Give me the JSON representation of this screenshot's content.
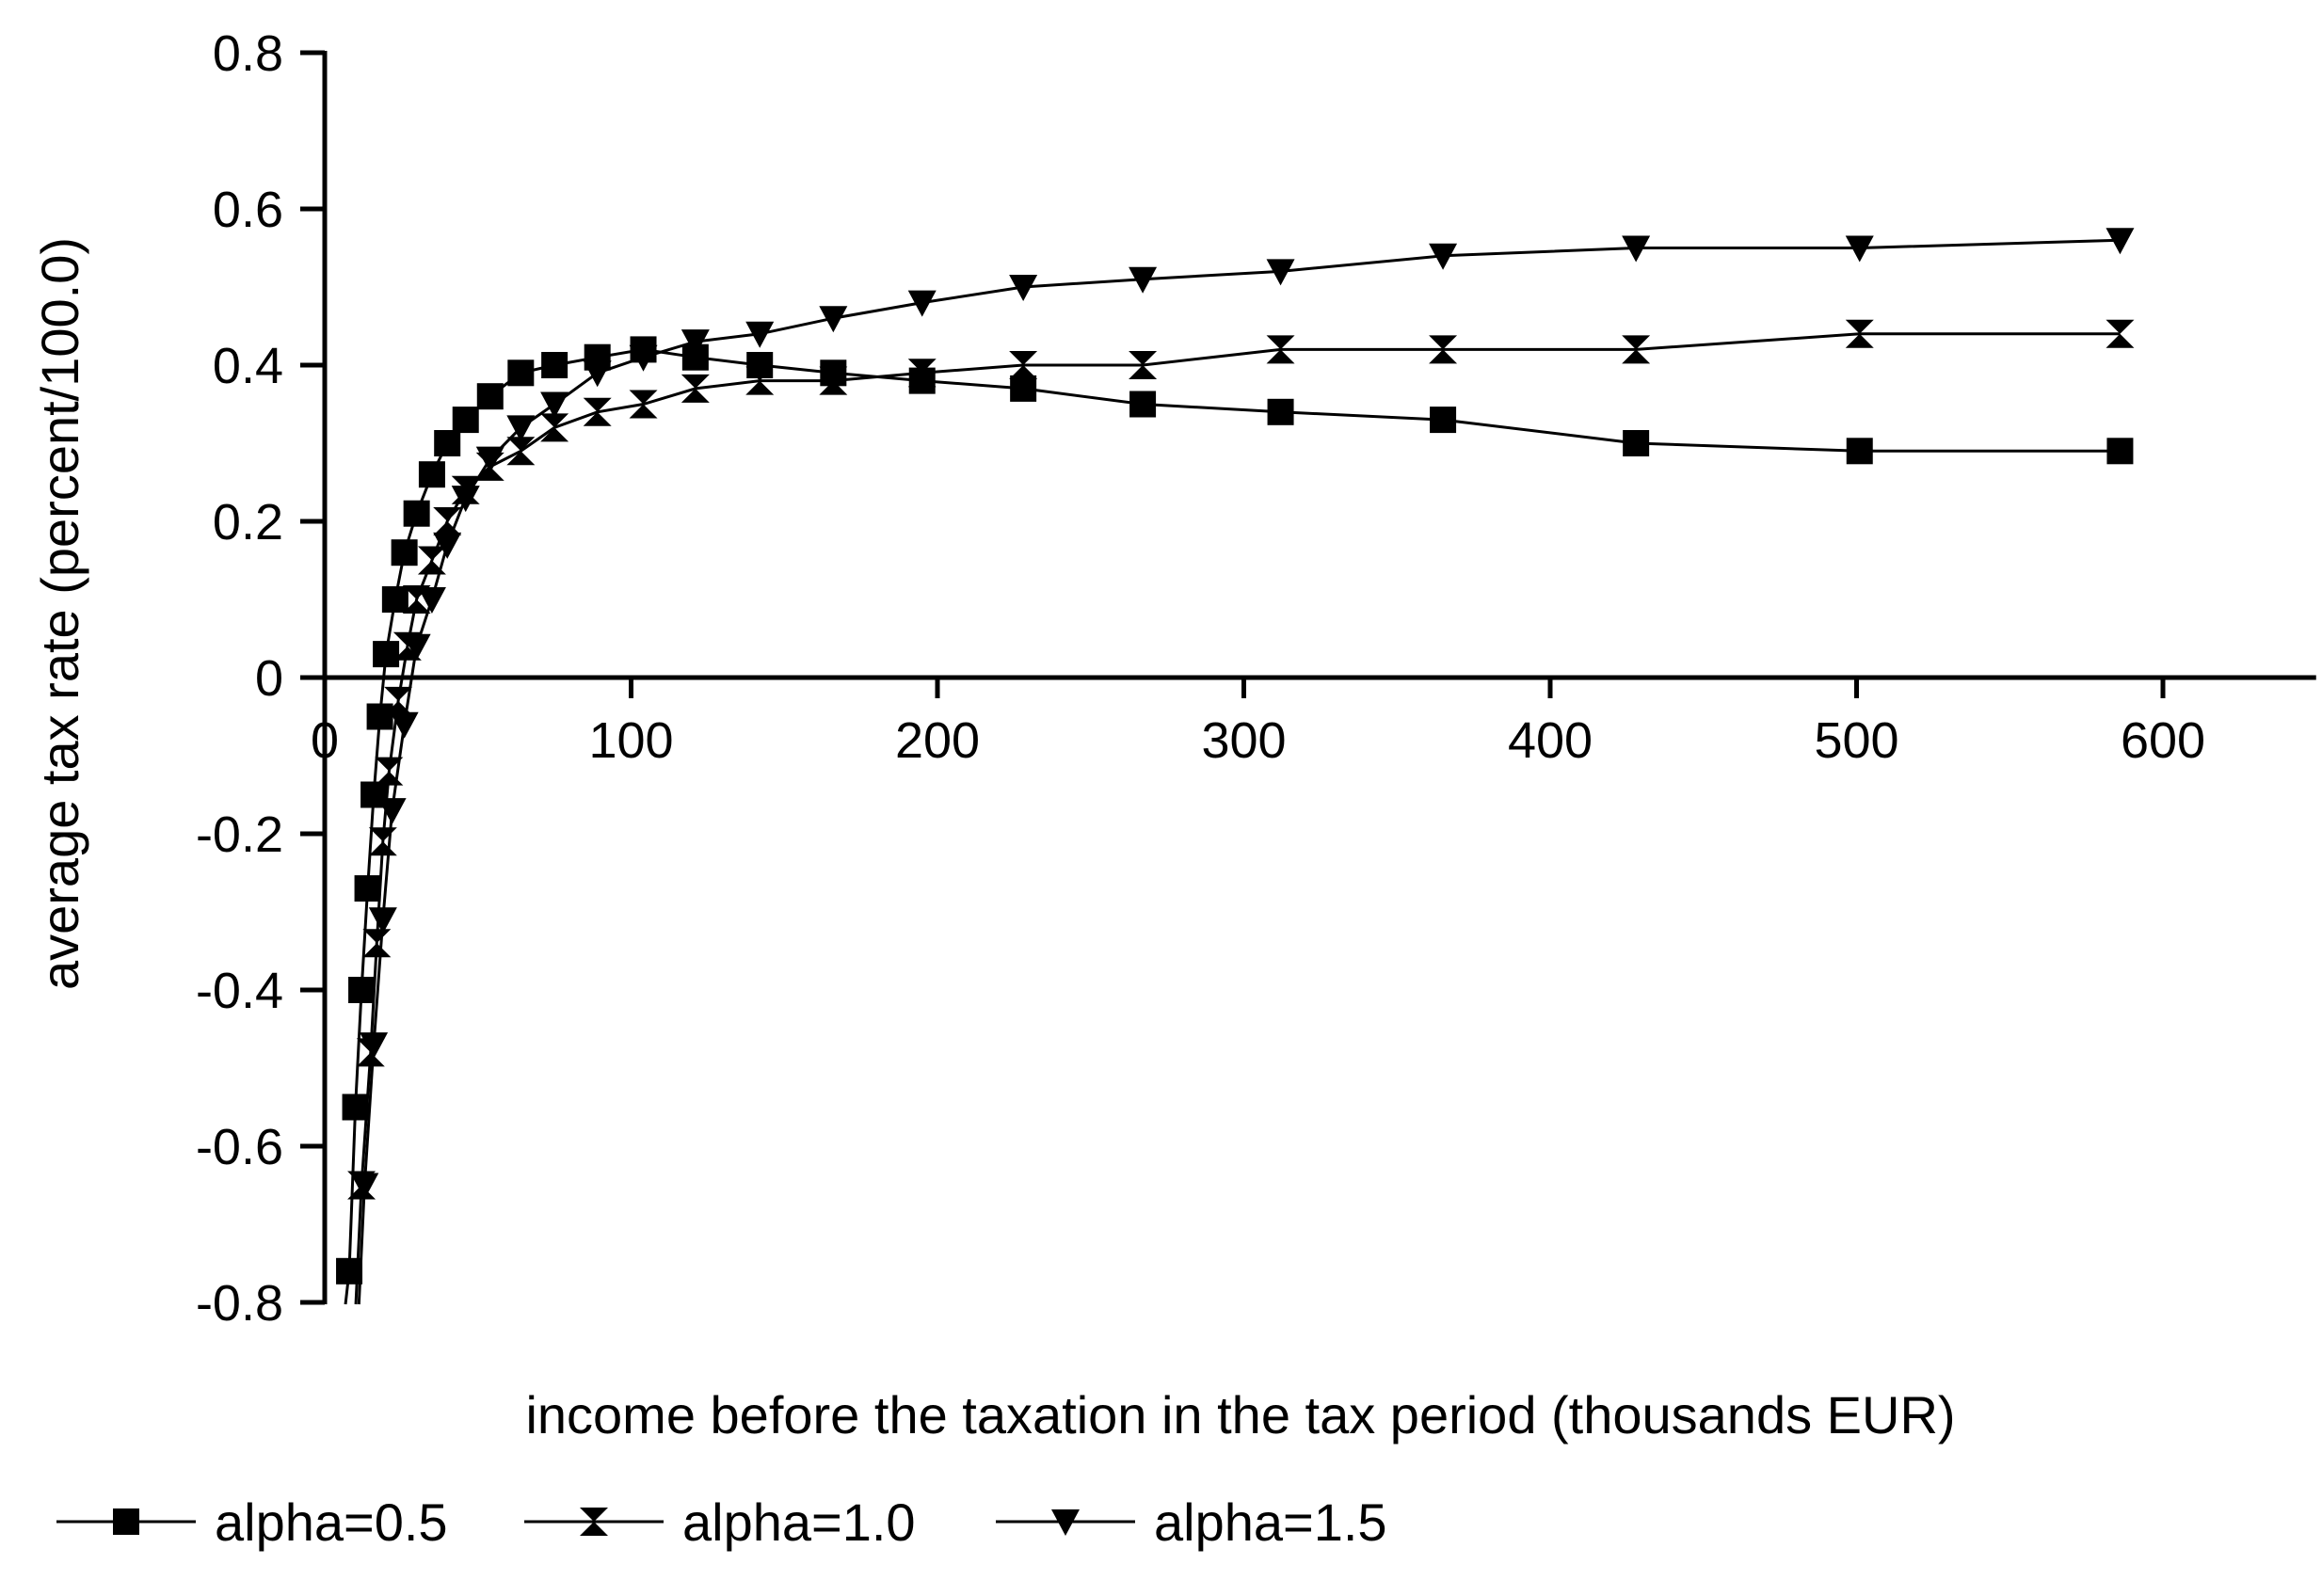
{
  "chart_data": {
    "type": "line",
    "title": "",
    "xlabel": "income before the taxation in the tax period (thousands EUR)",
    "ylabel": "average tax rate (percent/100.0)",
    "xlim": [
      0,
      650
    ],
    "ylim": [
      -0.8,
      0.8
    ],
    "x_ticks": [
      0,
      100,
      200,
      300,
      400,
      500,
      600
    ],
    "x_tick_labels": [
      "0",
      "100",
      "200",
      "300",
      "400",
      "500",
      "600"
    ],
    "y_ticks": [
      0.8,
      0.6,
      0.4,
      0.2,
      0,
      -0.2,
      -0.4,
      -0.6,
      -0.8
    ],
    "y_tick_labels": [
      "0.8",
      "0.6",
      "0.4",
      "0.2",
      "0",
      "-0.2",
      "-0.4",
      "-0.6",
      "-0.8"
    ],
    "grid": false,
    "legend_position": "bottom",
    "series": [
      {
        "name": "alpha=0.5",
        "marker": "square",
        "x": [
          8,
          10,
          12,
          14,
          16,
          18,
          20,
          23,
          26,
          30,
          35,
          40,
          46,
          54,
          64,
          75,
          89,
          104,
          121,
          142,
          166,
          195,
          228,
          267,
          312,
          365,
          428,
          501,
          586
        ],
        "y": [
          -0.76,
          -0.55,
          -0.4,
          -0.27,
          -0.15,
          -0.05,
          0.03,
          0.1,
          0.16,
          0.21,
          0.26,
          0.3,
          0.33,
          0.36,
          0.39,
          0.4,
          0.41,
          0.42,
          0.41,
          0.4,
          0.39,
          0.38,
          0.37,
          0.35,
          0.34,
          0.33,
          0.3,
          0.29,
          0.29
        ]
      },
      {
        "name": "alpha=1.0",
        "marker": "bowtie",
        "x": [
          12,
          15,
          17,
          19,
          21,
          24,
          27,
          30,
          35,
          40,
          46,
          54,
          64,
          75,
          89,
          104,
          121,
          142,
          166,
          195,
          228,
          267,
          312,
          365,
          428,
          501,
          586
        ],
        "y": [
          -0.65,
          -0.48,
          -0.34,
          -0.21,
          -0.12,
          -0.03,
          0.04,
          0.1,
          0.15,
          0.2,
          0.24,
          0.27,
          0.29,
          0.32,
          0.34,
          0.35,
          0.37,
          0.38,
          0.38,
          0.39,
          0.4,
          0.4,
          0.42,
          0.42,
          0.42,
          0.44,
          0.44
        ]
      },
      {
        "name": "alpha=1.5",
        "marker": "triangle-down",
        "x": [
          13,
          16,
          19,
          22,
          26,
          30,
          35,
          40,
          46,
          54,
          64,
          75,
          89,
          104,
          121,
          142,
          166,
          195,
          228,
          267,
          312,
          365,
          428,
          501,
          586
        ],
        "y": [
          -0.65,
          -0.47,
          -0.31,
          -0.17,
          -0.06,
          0.04,
          0.1,
          0.17,
          0.23,
          0.28,
          0.32,
          0.35,
          0.39,
          0.41,
          0.43,
          0.44,
          0.46,
          0.48,
          0.5,
          0.51,
          0.52,
          0.54,
          0.55,
          0.55,
          0.56
        ]
      }
    ]
  }
}
